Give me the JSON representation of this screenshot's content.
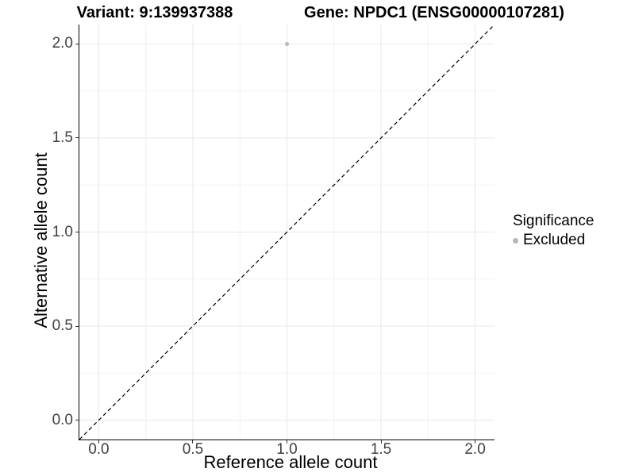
{
  "chart_data": {
    "type": "scatter",
    "title_left": "Variant: 9:139937388",
    "title_right": "Gene: NPDC1 (ENSG00000107281)",
    "xlabel": "Reference allele count",
    "ylabel": "Alternative allele count",
    "xlim": [
      -0.103,
      2.103
    ],
    "ylim": [
      -0.103,
      2.103
    ],
    "xticks": {
      "values": [
        0,
        0.5,
        1,
        1.5,
        2
      ],
      "labels": [
        "0.0",
        "0.5",
        "1.0",
        "1.5",
        "2.0"
      ]
    },
    "yticks": {
      "values": [
        0,
        0.5,
        1,
        1.5,
        2
      ],
      "labels": [
        "0.0",
        "0.5",
        "1.0",
        "1.5",
        "2.0"
      ]
    },
    "minor_ticks": [
      0.25,
      0.75,
      1.25,
      1.75
    ],
    "grid": {
      "major": true,
      "minor": true
    },
    "reference_line": {
      "type": "identity",
      "slope": 1,
      "intercept": 0,
      "style": "dashed",
      "color": "#000000"
    },
    "series": [
      {
        "name": "Excluded",
        "color": "#b8b8b8",
        "points": [
          {
            "x": 1.0,
            "y": 2.0
          }
        ]
      }
    ],
    "legend": {
      "title": "Significance",
      "position": "right",
      "entries": [
        {
          "label": "Excluded",
          "color": "#b8b8b8"
        }
      ]
    }
  },
  "colors": {
    "background": "#ffffff",
    "axis_line": "#000000",
    "tick": "#333333",
    "tick_label": "#404040",
    "grid_major": "#e8e8e8",
    "grid_minor": "#f2f2f2"
  }
}
